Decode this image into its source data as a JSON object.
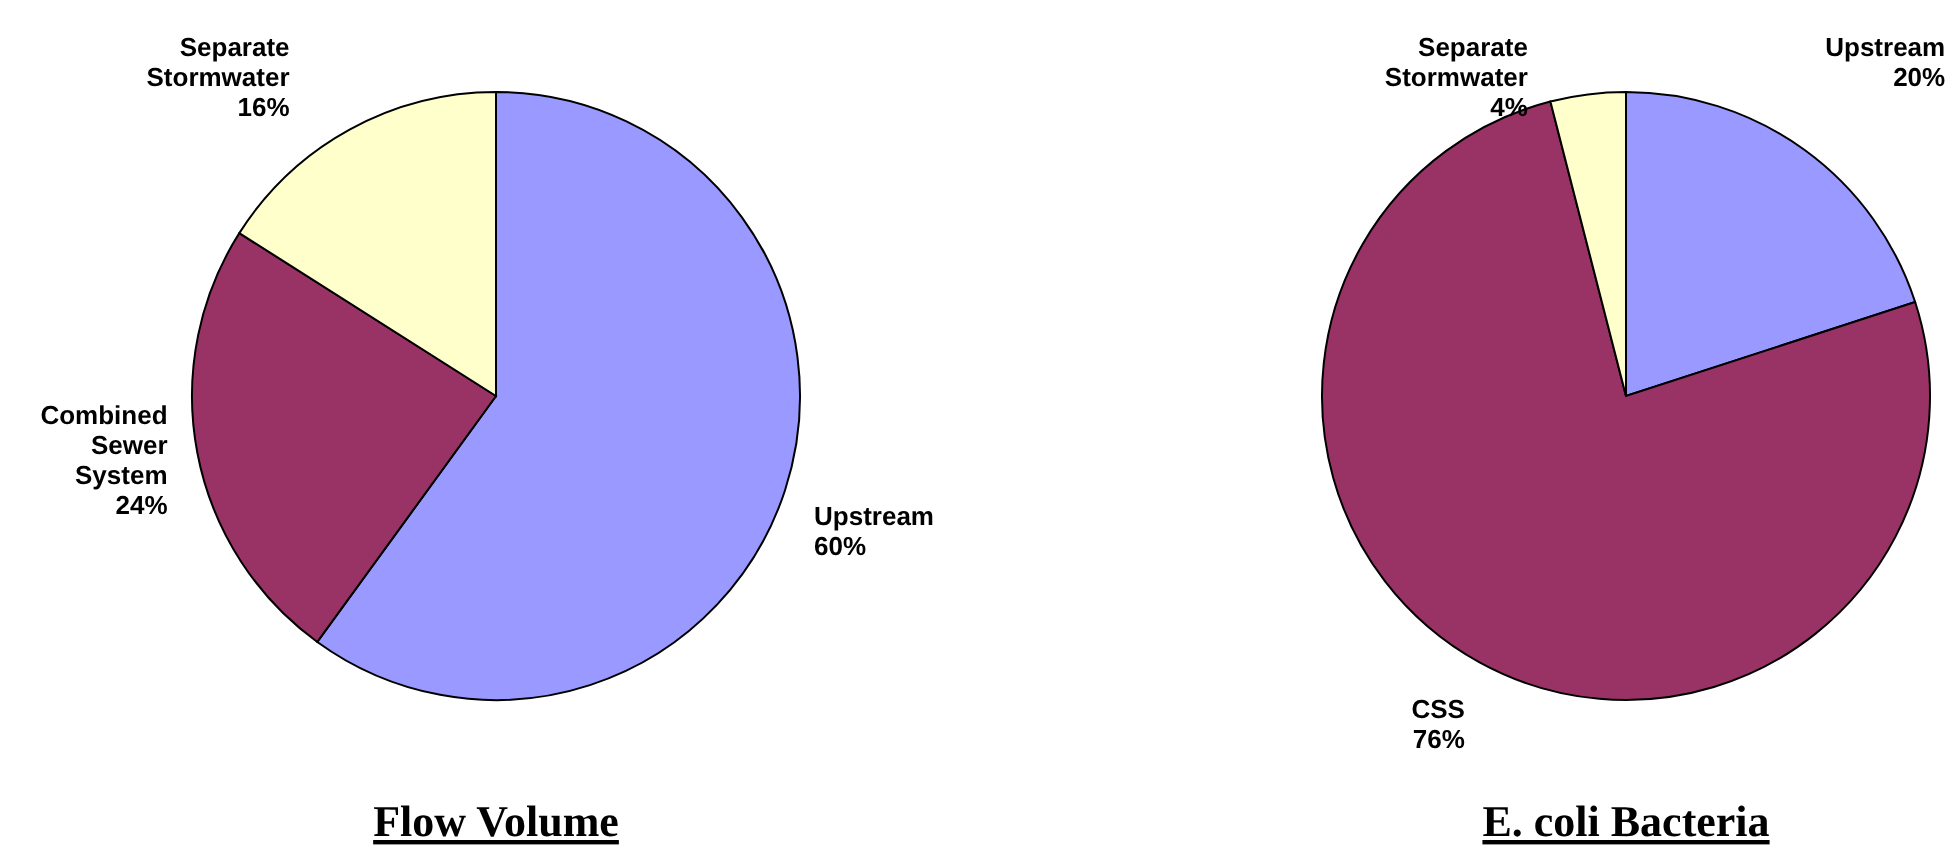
{
  "chart_data": [
    {
      "type": "pie",
      "title": "Flow Volume",
      "categories": [
        "Upstream",
        "Combined Sewer System",
        "Separate Stormwater"
      ],
      "values": [
        60,
        24,
        16
      ],
      "value_labels": [
        "60%",
        "24%",
        "16%"
      ],
      "colors": [
        "#9999ff",
        "#993366",
        "#ffffcc"
      ]
    },
    {
      "type": "pie",
      "title": "E. coli Bacteria",
      "categories": [
        "Upstream",
        "CSS",
        "Separate Stormwater"
      ],
      "values": [
        20,
        76,
        4
      ],
      "value_labels": [
        "20%",
        "76%",
        "4%"
      ],
      "colors": [
        "#9999ff",
        "#993366",
        "#ffffcc"
      ]
    }
  ]
}
